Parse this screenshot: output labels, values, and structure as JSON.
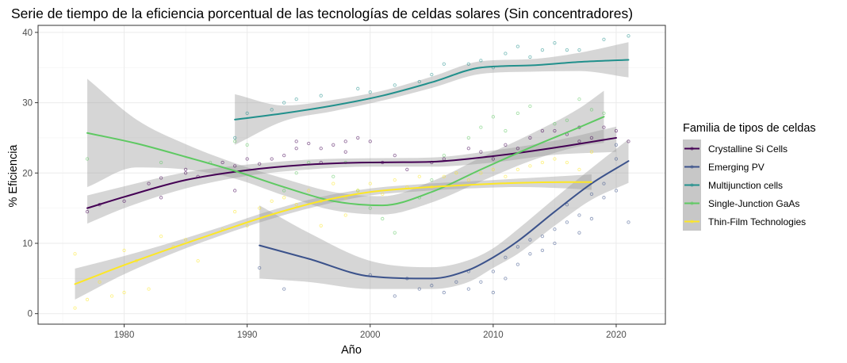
{
  "chart_data": {
    "type": "scatter",
    "title": "Serie de tiempo de la eficiencia porcentual de las tecnologías de celdas solares (Sin concentradores)",
    "xlabel": "Año",
    "ylabel": "% Eficiencia",
    "xlim": [
      1973,
      2024
    ],
    "ylim": [
      -1.5,
      41
    ],
    "x_ticks": [
      1980,
      1990,
      2000,
      2010,
      2020
    ],
    "y_ticks": [
      0,
      10,
      20,
      30,
      40
    ],
    "grid": true,
    "legend_position": "right",
    "legend_title": "Familia de tipos de celdas",
    "series": [
      {
        "name": "Crystalline Si Cells",
        "color": "#440154",
        "smooth": {
          "x": [
            1977,
            1980,
            1985,
            1990,
            1995,
            2000,
            2005,
            2010,
            2015,
            2020
          ],
          "y": [
            15.0,
            16.6,
            19.0,
            20.4,
            21.2,
            21.5,
            21.6,
            22.4,
            23.6,
            25.0
          ],
          "lower": [
            12.8,
            15.0,
            17.8,
            19.6,
            20.5,
            20.9,
            20.9,
            21.5,
            22.6,
            23.0
          ],
          "upper": [
            16.8,
            18.1,
            20.1,
            21.2,
            21.9,
            22.1,
            22.2,
            23.2,
            24.6,
            26.6
          ]
        },
        "points": [
          [
            1977,
            14.5
          ],
          [
            1978,
            15.5
          ],
          [
            1980,
            16.0
          ],
          [
            1982,
            18.5
          ],
          [
            1983,
            16.5
          ],
          [
            1983,
            19.3
          ],
          [
            1985,
            20.0
          ],
          [
            1985,
            20.5
          ],
          [
            1986,
            19.5
          ],
          [
            1988,
            21.5
          ],
          [
            1989,
            17.5
          ],
          [
            1989,
            21.0
          ],
          [
            1990,
            22.0
          ],
          [
            1991,
            21.3
          ],
          [
            1992,
            22.0
          ],
          [
            1993,
            22.5
          ],
          [
            1994,
            23.5
          ],
          [
            1994,
            24.5
          ],
          [
            1995,
            24.2
          ],
          [
            1996,
            21.5
          ],
          [
            1996,
            23.5
          ],
          [
            1997,
            24.0
          ],
          [
            1998,
            24.5
          ],
          [
            1998,
            23.0
          ],
          [
            1999,
            25.0
          ],
          [
            2000,
            24.5
          ],
          [
            2001,
            21.5
          ],
          [
            2002,
            22.5
          ],
          [
            2003,
            20.5
          ],
          [
            2005,
            21.5
          ],
          [
            2006,
            22.0
          ],
          [
            2008,
            23.5
          ],
          [
            2009,
            23.0
          ],
          [
            2010,
            22.0
          ],
          [
            2011,
            24.0
          ],
          [
            2012,
            23.5
          ],
          [
            2013,
            25.0
          ],
          [
            2014,
            26.0
          ],
          [
            2015,
            26.0
          ],
          [
            2016,
            25.5
          ],
          [
            2017,
            26.5
          ],
          [
            2017,
            24.5
          ],
          [
            2018,
            25.0
          ],
          [
            2019,
            26.5
          ],
          [
            2020,
            26.0
          ],
          [
            2021,
            24.5
          ]
        ]
      },
      {
        "name": "Emerging PV",
        "color": "#3b528b",
        "smooth": {
          "x": [
            1991,
            1995,
            2000,
            2005,
            2008,
            2010,
            2012,
            2015,
            2018,
            2021
          ],
          "y": [
            9.7,
            7.8,
            5.3,
            5.0,
            6.2,
            8.0,
            10.3,
            14.5,
            18.5,
            21.7
          ],
          "lower": [
            5.0,
            4.5,
            3.5,
            3.5,
            4.5,
            6.5,
            8.5,
            12.5,
            16.2,
            18.6
          ],
          "upper": [
            15.4,
            11.5,
            7.5,
            6.6,
            7.6,
            9.3,
            12.0,
            16.4,
            20.7,
            24.8
          ]
        },
        "points": [
          [
            1991,
            6.5
          ],
          [
            1993,
            3.5
          ],
          [
            2000,
            5.5
          ],
          [
            2002,
            2.5
          ],
          [
            2003,
            5.0
          ],
          [
            2004,
            3.5
          ],
          [
            2005,
            4.0
          ],
          [
            2006,
            3.0
          ],
          [
            2007,
            4.5
          ],
          [
            2008,
            3.5
          ],
          [
            2008,
            6.0
          ],
          [
            2009,
            4.5
          ],
          [
            2010,
            6.0
          ],
          [
            2010,
            3.0
          ],
          [
            2011,
            5.0
          ],
          [
            2011,
            8.0
          ],
          [
            2012,
            9.5
          ],
          [
            2012,
            7.0
          ],
          [
            2013,
            10.5
          ],
          [
            2013,
            8.5
          ],
          [
            2014,
            11.0
          ],
          [
            2014,
            9.0
          ],
          [
            2015,
            12.0
          ],
          [
            2015,
            10.0
          ],
          [
            2016,
            13.0
          ],
          [
            2016,
            15.5
          ],
          [
            2017,
            14.0
          ],
          [
            2017,
            11.5
          ],
          [
            2018,
            17.0
          ],
          [
            2018,
            13.5
          ],
          [
            2019,
            16.5
          ],
          [
            2019,
            18.5
          ],
          [
            2020,
            17.5
          ],
          [
            2020,
            22.0
          ],
          [
            2020,
            24.0
          ],
          [
            2021,
            13.0
          ]
        ]
      },
      {
        "name": "Multijunction cells",
        "color": "#21908c",
        "smooth": {
          "x": [
            1989,
            1993,
            1997,
            2001,
            2005,
            2009,
            2013,
            2017,
            2021
          ],
          "y": [
            27.6,
            28.5,
            29.6,
            31.0,
            32.9,
            35.0,
            35.3,
            35.8,
            36.1
          ],
          "lower": [
            24.0,
            27.4,
            28.8,
            30.3,
            32.1,
            34.1,
            34.4,
            34.5,
            33.6
          ],
          "upper": [
            31.2,
            29.6,
            30.4,
            31.7,
            33.7,
            35.9,
            36.2,
            37.1,
            38.6
          ]
        },
        "points": [
          [
            1989,
            25.0
          ],
          [
            1990,
            28.5
          ],
          [
            1992,
            29.0
          ],
          [
            1993,
            30.0
          ],
          [
            1994,
            30.5
          ],
          [
            1996,
            31.0
          ],
          [
            1999,
            32.0
          ],
          [
            2000,
            31.5
          ],
          [
            2002,
            32.5
          ],
          [
            2004,
            33.0
          ],
          [
            2005,
            34.0
          ],
          [
            2006,
            35.5
          ],
          [
            2008,
            35.5
          ],
          [
            2009,
            36.0
          ],
          [
            2010,
            35.0
          ],
          [
            2011,
            37.0
          ],
          [
            2012,
            38.0
          ],
          [
            2013,
            36.5
          ],
          [
            2014,
            37.5
          ],
          [
            2015,
            38.5
          ],
          [
            2016,
            37.5
          ],
          [
            2017,
            37.5
          ],
          [
            2019,
            39.0
          ],
          [
            2021,
            39.5
          ]
        ]
      },
      {
        "name": "Single-Junction GaAs",
        "color": "#5ec962",
        "smooth": {
          "x": [
            1977,
            1981,
            1985,
            1989,
            1993,
            1997,
            2001,
            2005,
            2009,
            2013,
            2017,
            2019
          ],
          "y": [
            25.7,
            24.2,
            22.3,
            20.3,
            18.0,
            16.0,
            15.4,
            17.3,
            20.5,
            23.6,
            26.5,
            28.0
          ],
          "lower": [
            18.0,
            20.8,
            20.5,
            19.2,
            16.8,
            14.7,
            14.1,
            15.8,
            18.8,
            21.7,
            23.8,
            24.3
          ],
          "upper": [
            33.4,
            27.6,
            24.1,
            21.4,
            19.2,
            17.3,
            16.7,
            18.8,
            22.2,
            25.5,
            29.2,
            31.7
          ]
        },
        "points": [
          [
            1977,
            22.0
          ],
          [
            1983,
            21.5
          ],
          [
            1987,
            21.5
          ],
          [
            1989,
            24.5
          ],
          [
            1990,
            24.0
          ],
          [
            1993,
            17.5
          ],
          [
            1994,
            20.0
          ],
          [
            1995,
            21.5
          ],
          [
            1997,
            19.5
          ],
          [
            1998,
            21.5
          ],
          [
            1999,
            17.5
          ],
          [
            2000,
            15.0
          ],
          [
            2001,
            13.5
          ],
          [
            2002,
            11.5
          ],
          [
            2004,
            16.5
          ],
          [
            2005,
            19.0
          ],
          [
            2006,
            22.5
          ],
          [
            2008,
            25.0
          ],
          [
            2009,
            26.5
          ],
          [
            2010,
            28.0
          ],
          [
            2011,
            26.0
          ],
          [
            2012,
            28.5
          ],
          [
            2013,
            29.5
          ],
          [
            2015,
            27.0
          ],
          [
            2016,
            27.5
          ],
          [
            2017,
            30.5
          ],
          [
            2018,
            29.0
          ],
          [
            2019,
            28.5
          ]
        ]
      },
      {
        "name": "Thin-Film Technologies",
        "color": "#fde725",
        "smooth": {
          "x": [
            1976,
            1980,
            1984,
            1988,
            1992,
            1996,
            2000,
            2004,
            2008,
            2012,
            2016,
            2018
          ],
          "y": [
            4.2,
            6.9,
            9.4,
            11.8,
            14.1,
            16.0,
            17.3,
            17.9,
            18.3,
            18.6,
            18.7,
            18.7
          ],
          "lower": [
            2.0,
            5.6,
            8.6,
            11.2,
            13.5,
            15.4,
            16.8,
            17.4,
            17.8,
            18.0,
            17.8,
            17.6
          ],
          "upper": [
            6.4,
            8.2,
            10.2,
            12.4,
            14.7,
            16.6,
            17.8,
            18.4,
            18.8,
            19.2,
            19.6,
            19.8
          ]
        },
        "points": [
          [
            1976,
            0.8
          ],
          [
            1976,
            8.5
          ],
          [
            1977,
            2.0
          ],
          [
            1978,
            4.5
          ],
          [
            1979,
            2.5
          ],
          [
            1980,
            3.0
          ],
          [
            1980,
            9.0
          ],
          [
            1981,
            7.5
          ],
          [
            1982,
            3.5
          ],
          [
            1983,
            11.0
          ],
          [
            1984,
            9.5
          ],
          [
            1985,
            10.5
          ],
          [
            1986,
            7.5
          ],
          [
            1988,
            12.0
          ],
          [
            1989,
            14.5
          ],
          [
            1990,
            12.5
          ],
          [
            1991,
            15.0
          ],
          [
            1992,
            16.0
          ],
          [
            1993,
            16.5
          ],
          [
            1994,
            15.5
          ],
          [
            1995,
            17.5
          ],
          [
            1996,
            16.0
          ],
          [
            1996,
            12.5
          ],
          [
            1997,
            18.5
          ],
          [
            1998,
            16.5
          ],
          [
            1998,
            14.0
          ],
          [
            1999,
            17.5
          ],
          [
            2000,
            18.5
          ],
          [
            2001,
            17.0
          ],
          [
            2002,
            19.0
          ],
          [
            2003,
            18.0
          ],
          [
            2004,
            19.5
          ],
          [
            2005,
            18.0
          ],
          [
            2006,
            19.5
          ],
          [
            2007,
            20.0
          ],
          [
            2008,
            19.0
          ],
          [
            2009,
            20.0
          ],
          [
            2010,
            20.5
          ],
          [
            2011,
            19.5
          ],
          [
            2012,
            20.5
          ],
          [
            2013,
            21.0
          ],
          [
            2014,
            21.5
          ],
          [
            2015,
            22.0
          ],
          [
            2016,
            21.5
          ],
          [
            2017,
            20.5
          ],
          [
            2018,
            23.0
          ]
        ]
      }
    ]
  }
}
